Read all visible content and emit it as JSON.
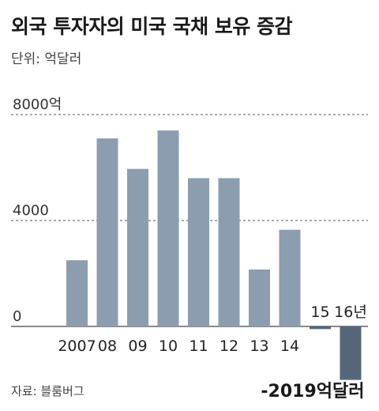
{
  "header": {
    "title": "외국 투자자의 미국 국채 보유 증감",
    "unit": "단위: 억달러"
  },
  "footer": {
    "source": "자료: 블룸버그"
  },
  "colors": {
    "bar": "#8c9db0",
    "bar_negative": "#56667a",
    "grid": "#555555",
    "baseline": "#444444"
  },
  "chart_data": {
    "type": "bar",
    "categories": [
      "2007",
      "08",
      "09",
      "10",
      "11",
      "12",
      "13",
      "14",
      "15",
      "16년"
    ],
    "values": [
      2500,
      7100,
      5950,
      7400,
      5600,
      5600,
      2150,
      3650,
      -100,
      -2019
    ],
    "ylim": [
      -2019,
      8000
    ],
    "yticks": [
      0,
      4000,
      8000
    ],
    "ytick_labels": [
      "0",
      "4000",
      "8000억"
    ],
    "annotation": "-2019억달러",
    "grid": "dashed"
  }
}
